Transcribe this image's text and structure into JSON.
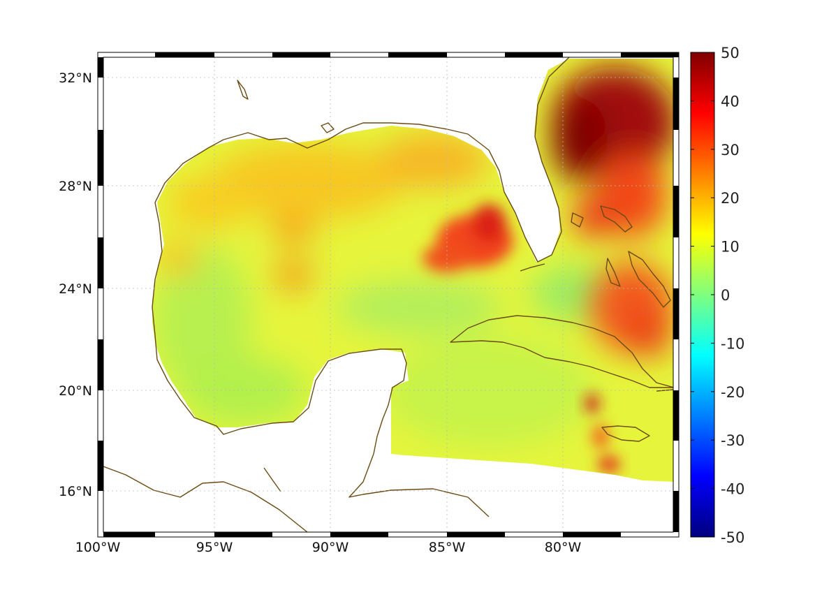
{
  "map": {
    "projection": "equidistant cylindrical",
    "lon_range": [
      -100,
      -75
    ],
    "lat_range": [
      14,
      33
    ],
    "field": "smooth colored field over ocean",
    "land_color": "#ffffff",
    "coast_color": "#6b4a12",
    "grid": true,
    "frame": "black-white alternating border"
  },
  "axes": {
    "x_ticks": [
      {
        "value": -100,
        "label": "100°W"
      },
      {
        "value": -95,
        "label": "95°W"
      },
      {
        "value": -90,
        "label": "90°W"
      },
      {
        "value": -85,
        "label": "85°W"
      },
      {
        "value": -80,
        "label": "80°W"
      }
    ],
    "y_ticks": [
      {
        "value": 32,
        "label": "32°N"
      },
      {
        "value": 28,
        "label": "28°N"
      },
      {
        "value": 24,
        "label": "24°N"
      },
      {
        "value": 20,
        "label": "20°N"
      },
      {
        "value": 16,
        "label": "16°N"
      }
    ]
  },
  "colorbar": {
    "colormap": "jet",
    "min": -50,
    "max": 50,
    "ticks": [
      "50",
      "40",
      "30",
      "20",
      "10",
      "0",
      "-10",
      "-20",
      "-30",
      "-40",
      "-50"
    ]
  }
}
